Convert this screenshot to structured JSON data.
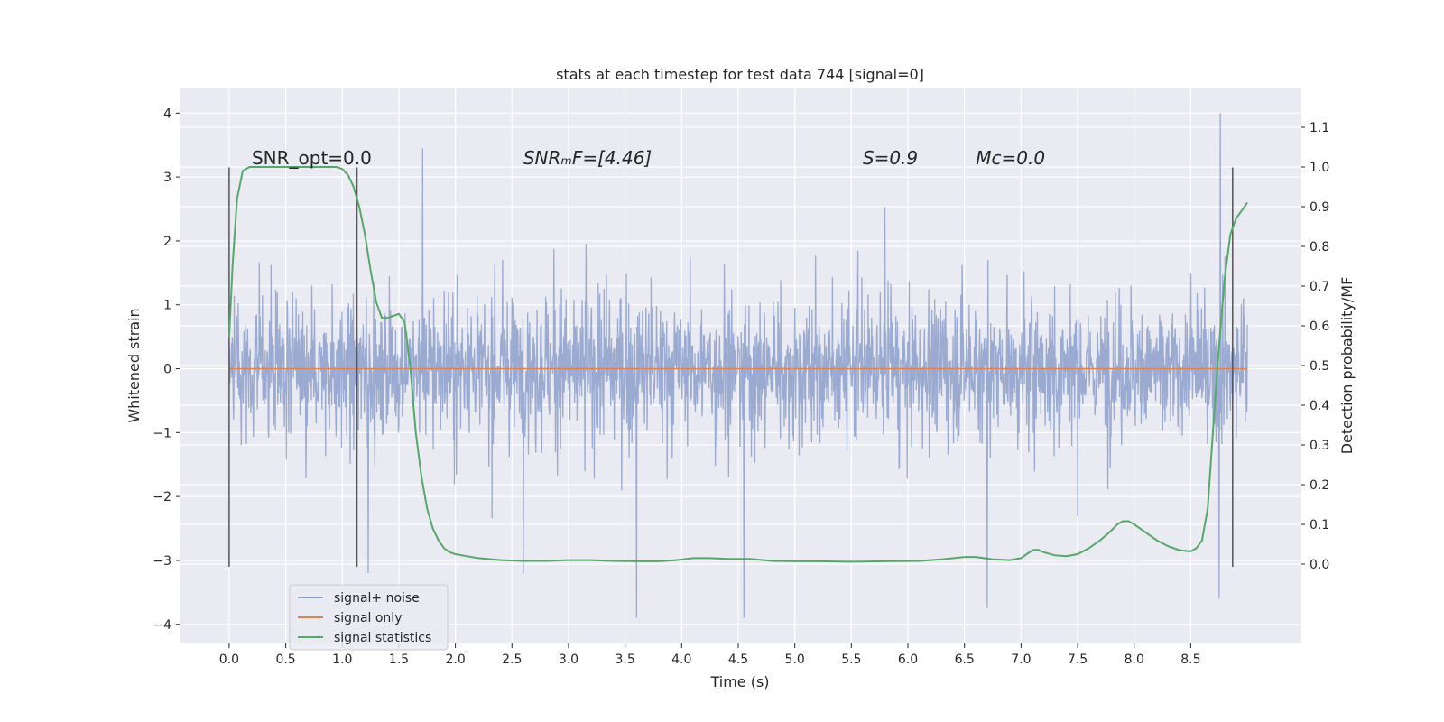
{
  "chart_data": {
    "type": "line",
    "title": "stats at each timestep for test data 744 [signal=0]",
    "xlabel": "Time (s)",
    "ylabel_left": "Whitened strain",
    "ylabel_right": "Detection probability/MF",
    "xlim": [
      -0.43,
      9.47
    ],
    "ylim_left": [
      -4.3,
      4.4
    ],
    "ylim_right": [
      -0.2,
      1.2
    ],
    "x_ticks": [
      0.0,
      0.5,
      1.0,
      1.5,
      2.0,
      2.5,
      3.0,
      3.5,
      4.0,
      4.5,
      5.0,
      5.5,
      6.0,
      6.5,
      7.0,
      7.5,
      8.0,
      8.5
    ],
    "x_tick_labels": [
      "0.0",
      "0.5",
      "1.0",
      "1.5",
      "2.0",
      "2.5",
      "3.0",
      "3.5",
      "4.0",
      "4.5",
      "5.0",
      "5.5",
      "6.0",
      "6.5",
      "7.0",
      "7.5",
      "8.0",
      "8.5"
    ],
    "y_left_ticks": [
      4,
      3,
      2,
      1,
      0,
      -1,
      -2,
      -3,
      -4
    ],
    "y_left_tick_labels": [
      "4",
      "3",
      "2",
      "1",
      "0",
      "−1",
      "−2",
      "−3",
      "−4"
    ],
    "y_right_ticks": [
      1.1,
      1.0,
      0.9,
      0.8,
      0.7,
      0.6,
      0.5,
      0.4,
      0.3,
      0.2,
      0.1,
      0.0
    ],
    "y_right_tick_labels": [
      "1.1",
      "1.0",
      "0.9",
      "0.8",
      "0.7",
      "0.6",
      "0.5",
      "0.4",
      "0.3",
      "0.2",
      "0.1",
      "0.0"
    ],
    "annotations": [
      {
        "text": "SNR_opt=0.0",
        "x": 0.2,
        "y": 3.2
      },
      {
        "text": "SNRₘF=[4.46]",
        "x": 2.6,
        "y": 3.2
      },
      {
        "text": "S=0.9",
        "x": 5.6,
        "y": 3.2
      },
      {
        "text": "Mᴄ=0.0",
        "x": 6.6,
        "y": 3.2
      }
    ],
    "vertical_lines_x": [
      0.0,
      1.13,
      8.87
    ],
    "vertical_lines_range": [
      -3.1,
      3.15
    ],
    "legend": {
      "placement": "lower-left",
      "entries": [
        "signal+ noise",
        "signal only",
        "signal statistics"
      ]
    },
    "colors": {
      "signal_noise": "#8c9fcb",
      "signal_only": "#dd8452",
      "signal_statistics": "#55a868",
      "background": "#eaeaf2",
      "grid": "#ffffff",
      "vline": "#555555"
    },
    "series": [
      {
        "name": "signal+ noise",
        "axis": "left",
        "description_x_range": [
          0.0,
          9.0
        ],
        "typical_band": [
          -1.3,
          1.3
        ],
        "notable_peaks": [
          [
            1.71,
            3.45
          ],
          [
            8.76,
            4.0
          ],
          [
            3.6,
            -3.9
          ],
          [
            4.55,
            -3.9
          ],
          [
            6.7,
            -3.75
          ],
          [
            8.75,
            -3.6
          ],
          [
            1.23,
            -3.2
          ],
          [
            2.6,
            -3.2
          ]
        ]
      },
      {
        "name": "signal only",
        "axis": "left",
        "x": [
          0.0,
          9.0
        ],
        "y": [
          0.0,
          0.0
        ]
      },
      {
        "name": "signal statistics",
        "axis": "right",
        "x": [
          0.0,
          0.03,
          0.07,
          0.12,
          0.18,
          0.25,
          0.4,
          0.6,
          0.8,
          0.95,
          1.0,
          1.05,
          1.1,
          1.15,
          1.2,
          1.25,
          1.3,
          1.35,
          1.4,
          1.45,
          1.5,
          1.55,
          1.6,
          1.65,
          1.7,
          1.75,
          1.8,
          1.85,
          1.9,
          1.95,
          2.0,
          2.1,
          2.2,
          2.4,
          2.6,
          2.8,
          3.0,
          3.2,
          3.4,
          3.6,
          3.8,
          3.95,
          4.1,
          4.25,
          4.4,
          4.6,
          4.8,
          5.0,
          5.2,
          5.5,
          5.8,
          6.1,
          6.3,
          6.5,
          6.6,
          6.75,
          6.9,
          7.0,
          7.05,
          7.1,
          7.15,
          7.2,
          7.3,
          7.4,
          7.5,
          7.6,
          7.7,
          7.8,
          7.85,
          7.9,
          7.95,
          8.0,
          8.1,
          8.2,
          8.3,
          8.4,
          8.5,
          8.55,
          8.6,
          8.65,
          8.7,
          8.75,
          8.8,
          8.85,
          8.9,
          8.95,
          9.0
        ],
        "y": [
          0.57,
          0.75,
          0.92,
          0.99,
          1.0,
          1.0,
          1.0,
          1.0,
          1.0,
          1.0,
          0.995,
          0.98,
          0.95,
          0.9,
          0.83,
          0.74,
          0.66,
          0.62,
          0.62,
          0.625,
          0.63,
          0.61,
          0.5,
          0.33,
          0.22,
          0.14,
          0.09,
          0.06,
          0.04,
          0.03,
          0.025,
          0.02,
          0.015,
          0.01,
          0.008,
          0.008,
          0.01,
          0.01,
          0.008,
          0.007,
          0.007,
          0.01,
          0.015,
          0.015,
          0.013,
          0.013,
          0.008,
          0.007,
          0.007,
          0.006,
          0.007,
          0.008,
          0.012,
          0.018,
          0.018,
          0.012,
          0.01,
          0.015,
          0.025,
          0.035,
          0.036,
          0.03,
          0.022,
          0.02,
          0.025,
          0.04,
          0.06,
          0.085,
          0.1,
          0.108,
          0.108,
          0.1,
          0.08,
          0.06,
          0.045,
          0.035,
          0.032,
          0.04,
          0.06,
          0.14,
          0.35,
          0.55,
          0.72,
          0.83,
          0.87,
          0.89,
          0.91
        ]
      }
    ]
  }
}
